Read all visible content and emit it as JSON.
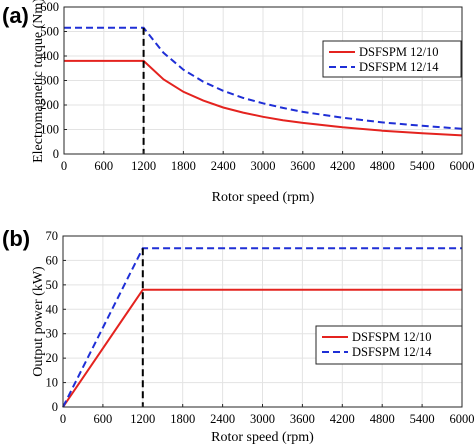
{
  "chart_data": [
    {
      "panel_label": "(a)",
      "type": "line",
      "xlabel": "Rotor speed (rpm)",
      "ylabel": "Electromagnetic torque (Nm)",
      "xlim": [
        0,
        6000
      ],
      "ylim": [
        0,
        600
      ],
      "x_ticks": [
        "0",
        "600",
        "1200",
        "1800",
        "2400",
        "3000",
        "3600",
        "4200",
        "4800",
        "5400",
        "6000"
      ],
      "y_ticks": [
        "0",
        "100",
        "200",
        "300",
        "400",
        "500",
        "600"
      ],
      "grid": true,
      "legend_position": "right",
      "base_speed_marker": 1200,
      "series": [
        {
          "name": "DSFSPM 12/10",
          "color": "#e4231f",
          "style": "solid",
          "x": [
            0,
            1200,
            1500,
            1800,
            2100,
            2400,
            2700,
            3000,
            3300,
            3600,
            4200,
            4800,
            5400,
            6000
          ],
          "y": [
            380,
            380,
            305,
            254,
            218,
            190,
            169,
            152,
            138,
            127,
            109,
            95,
            85,
            76
          ]
        },
        {
          "name": "DSFSPM 12/14",
          "color": "#1f2fd6",
          "style": "dashed",
          "x": [
            0,
            1200,
            1500,
            1800,
            2100,
            2400,
            2700,
            3000,
            3300,
            3600,
            4200,
            4800,
            5400,
            6000
          ],
          "y": [
            515,
            515,
            413,
            344,
            295,
            258,
            229,
            207,
            188,
            172,
            148,
            129,
            115,
            103
          ]
        }
      ]
    },
    {
      "panel_label": "(b)",
      "type": "line",
      "xlabel": "Rotor speed (rpm)",
      "ylabel": "Output power (kW)",
      "xlim": [
        0,
        6000
      ],
      "ylim": [
        0,
        70
      ],
      "x_ticks": [
        "0",
        "600",
        "1200",
        "1800",
        "2400",
        "3000",
        "3600",
        "4200",
        "4800",
        "5400",
        "6000"
      ],
      "y_ticks": [
        "0",
        "10",
        "20",
        "30",
        "40",
        "50",
        "60",
        "70"
      ],
      "grid": true,
      "legend_position": "right",
      "base_speed_marker": 1200,
      "series": [
        {
          "name": "DSFSPM 12/10",
          "color": "#e4231f",
          "style": "solid",
          "x": [
            0,
            1200,
            6000
          ],
          "y": [
            0,
            48,
            48
          ]
        },
        {
          "name": "DSFSPM 12/14",
          "color": "#1f2fd6",
          "style": "dashed",
          "x": [
            0,
            1200,
            6000
          ],
          "y": [
            0,
            65,
            65
          ]
        }
      ]
    }
  ]
}
